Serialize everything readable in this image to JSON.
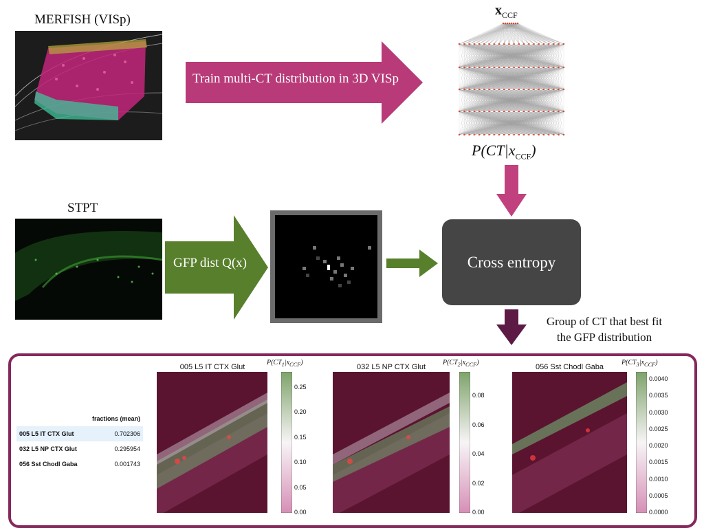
{
  "merfish": {
    "label": "MERFISH (VISp)"
  },
  "train": {
    "label": "Train multi-CT distribution in 3D VISp",
    "color": "#b83a78"
  },
  "network": {
    "top_label": "x",
    "top_subscript": "CCF",
    "bottom_label": "P(CT|x",
    "bottom_subscript": "CCF",
    "bottom_close": ")"
  },
  "stpt": {
    "label": "STPT"
  },
  "gfp": {
    "label": "GFP dist Q(x)",
    "color": "#587f2c"
  },
  "cross_entropy": {
    "label": "Cross entropy",
    "arrow_color": "#c0417d"
  },
  "group": {
    "line1": "Group of CT that best fit",
    "line2": "the GFP distribution",
    "arrow_color": "#5c1a44"
  },
  "fractions": {
    "header": "fractions (mean)",
    "rows": [
      {
        "name": "005 L5 IT CTX Glut",
        "value": "0.702306"
      },
      {
        "name": "032 L5 NP CTX Glut",
        "value": "0.295954"
      },
      {
        "name": "056 Sst Chodl Gaba",
        "value": "0.001743"
      }
    ]
  },
  "maps": [
    {
      "title": "005 L5 IT CTX Glut",
      "cb_label": "P(CT",
      "cb_sub": "1",
      "cb_tail": "|x",
      "cb_ccf": "CCF",
      "cb_close": ")",
      "ticks": [
        "0.25",
        "0.20",
        "0.15",
        "0.10",
        "0.05",
        "0.00"
      ]
    },
    {
      "title": "032 L5 NP CTX Glut",
      "cb_label": "P(CT",
      "cb_sub": "2",
      "cb_tail": "|x",
      "cb_ccf": "CCF",
      "cb_close": ")",
      "ticks": [
        "0.08",
        "0.06",
        "0.04",
        "0.02",
        "0.00"
      ]
    },
    {
      "title": "056 Sst Chodl Gaba",
      "cb_label": "P(CT",
      "cb_sub": "3",
      "cb_tail": "|x",
      "cb_ccf": "CCF",
      "cb_close": ")",
      "ticks": [
        "0.0040",
        "0.0035",
        "0.0030",
        "0.0025",
        "0.0020",
        "0.0015",
        "0.0010",
        "0.0005",
        "0.0000"
      ]
    }
  ],
  "colors": {
    "panel_border": "#85285c",
    "box": "#454545"
  }
}
